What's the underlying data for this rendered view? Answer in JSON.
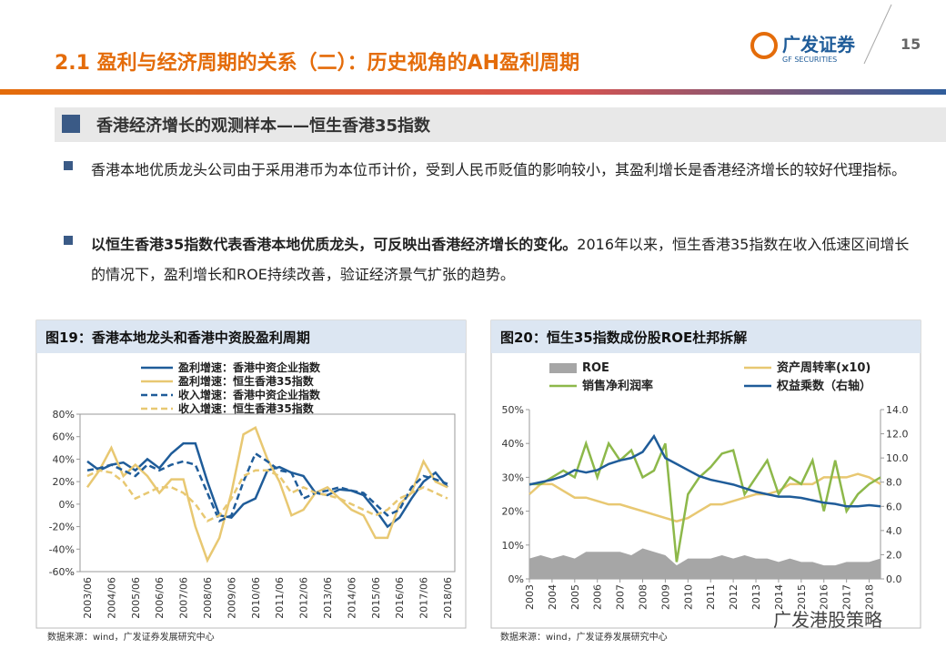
{
  "header": {
    "title": "2.1 盈利与经济周期的关系（二）：历史视角的AH盈利周期",
    "page": "15",
    "logo": "广发证券",
    "logo_sub": "GF SECURITIES"
  },
  "section": "香港经济增长的观测样本——恒生香港35指数",
  "bullets": [
    {
      "text": "香港本地优质龙头公司由于采用港币为本位币计价，受到人民币贬值的影响较小，其盈利增长是香港经济增长的较好代理指标。"
    },
    {
      "bold": "以恒生香港35指数代表香港本地优质龙头，可反映出香港经济增长的变化。",
      "text": "2016年以来，恒生香港35指数在收入低速区间增长的情况下，盈利增长和ROE持续改善，验证经济景气扩张的趋势。"
    }
  ],
  "watermark": "广发港股策略",
  "chart_data": [
    {
      "type": "line",
      "title": "图19：香港本地龙头和香港中资股盈利周期",
      "source": "数据来源：wind，广发证券发展研究中心",
      "categories": [
        "2003/06",
        null,
        "2004/06",
        null,
        "2005/06",
        null,
        "2006/06",
        null,
        "2007/06",
        null,
        "2008/06",
        null,
        "2009/06",
        null,
        "2010/06",
        null,
        "2011/06",
        null,
        "2012/06",
        null,
        "2013/06",
        null,
        "2014/06",
        null,
        "2015/06",
        null,
        "2016/06",
        null,
        "2017/06",
        null,
        "2018/06"
      ],
      "ylim": [
        -60,
        80
      ],
      "yticks": [
        {
          "value": -60,
          "label": "-60%"
        },
        {
          "value": -40,
          "label": "-40%"
        },
        {
          "value": -20,
          "label": "-20%"
        },
        {
          "value": 0,
          "label": "0%"
        },
        {
          "value": 20,
          "label": "20%"
        },
        {
          "value": 40,
          "label": "40%"
        },
        {
          "value": 60,
          "label": "60%"
        },
        {
          "value": 80,
          "label": "80%"
        }
      ],
      "series": [
        {
          "name": "盈利增速：香港中资企业指数",
          "color": "#1f5c99",
          "dash": false,
          "values": [
            38,
            30,
            35,
            37,
            30,
            40,
            32,
            45,
            54,
            54,
            20,
            -10,
            -12,
            0,
            5,
            30,
            33,
            28,
            25,
            10,
            8,
            13,
            12,
            8,
            -5,
            -20,
            -12,
            5,
            20,
            28,
            15
          ]
        },
        {
          "name": "盈利增速：恒生香港35指数",
          "color": "#e8c872",
          "dash": false,
          "values": [
            15,
            30,
            50,
            25,
            35,
            25,
            10,
            22,
            22,
            -20,
            -50,
            -30,
            10,
            62,
            68,
            40,
            20,
            -10,
            -5,
            10,
            15,
            5,
            -5,
            -10,
            -30,
            -30,
            0,
            10,
            38,
            20,
            15
          ]
        },
        {
          "name": "收入增速：香港中资企业指数",
          "color": "#1f5c99",
          "dash": true,
          "values": [
            30,
            32,
            35,
            30,
            25,
            35,
            30,
            35,
            38,
            35,
            10,
            -15,
            -10,
            20,
            45,
            38,
            30,
            28,
            5,
            10,
            12,
            15,
            12,
            10,
            0,
            -10,
            -5,
            15,
            25,
            22,
            18
          ]
        },
        {
          "name": "收入增速：恒生香港35指数",
          "color": "#e8c872",
          "dash": true,
          "values": [
            25,
            30,
            28,
            20,
            5,
            10,
            15,
            15,
            10,
            0,
            -15,
            -10,
            5,
            25,
            30,
            30,
            25,
            10,
            15,
            10,
            8,
            5,
            0,
            -5,
            -10,
            -5,
            5,
            10,
            15,
            10,
            5
          ]
        }
      ]
    },
    {
      "type": "line",
      "title": "图20：恒生35指数成份股ROE杜邦拆解",
      "source": "数据来源：wind，广发证券发展研究中心",
      "x": [
        2003,
        2003.5,
        2004,
        2004.5,
        2005,
        2005.5,
        2006,
        2006.5,
        2007,
        2007.5,
        2008,
        2008.5,
        2009,
        2009.5,
        2010,
        2010.5,
        2011,
        2011.5,
        2012,
        2012.5,
        2013,
        2013.5,
        2014,
        2014.5,
        2015,
        2015.5,
        2016,
        2016.5,
        2017,
        2017.5,
        2018,
        2018.5
      ],
      "xlim": [
        2003,
        2018.5
      ],
      "xticks": [
        2003,
        2004,
        2005,
        2006,
        2007,
        2008,
        2009,
        2010,
        2011,
        2012,
        2013,
        2014,
        2015,
        2016,
        2017,
        2018
      ],
      "ylim": [
        0,
        50
      ],
      "yticks": [
        {
          "value": 0,
          "label": "0%"
        },
        {
          "value": 10,
          "label": "10%"
        },
        {
          "value": 20,
          "label": "20%"
        },
        {
          "value": 30,
          "label": "30%"
        },
        {
          "value": 40,
          "label": "40%"
        },
        {
          "value": 50,
          "label": "50%"
        }
      ],
      "y2lim": [
        0,
        14
      ],
      "y2ticks": [
        {
          "value": 0,
          "label": "0.0"
        },
        {
          "value": 2,
          "label": "2.0"
        },
        {
          "value": 4,
          "label": "4.0"
        },
        {
          "value": 6,
          "label": "6.0"
        },
        {
          "value": 8,
          "label": "8.0"
        },
        {
          "value": 10,
          "label": "10.0"
        },
        {
          "value": 12,
          "label": "12.0"
        },
        {
          "value": 14,
          "label": "14.0"
        }
      ],
      "series": [
        {
          "name": "ROE",
          "color": "#a6a6a6",
          "style": "area",
          "values": [
            6,
            7,
            6,
            7,
            6,
            8,
            8,
            8,
            8,
            7,
            9,
            8,
            7,
            4,
            6,
            6,
            6,
            7,
            6,
            7,
            6,
            6,
            5,
            6,
            5,
            5,
            4,
            4,
            5,
            5,
            5,
            6
          ]
        },
        {
          "name": "资产周转率(x10)",
          "color": "#e8c872",
          "values": [
            25,
            28,
            28,
            26,
            24,
            24,
            23,
            22,
            22,
            21,
            20,
            19,
            18,
            17,
            18,
            20,
            22,
            22,
            23,
            24,
            25,
            25,
            26,
            28,
            28,
            28,
            30,
            30,
            30,
            31,
            30,
            28
          ]
        },
        {
          "name": "销售净利润率",
          "color": "#8db84a",
          "values": [
            28,
            28,
            30,
            32,
            30,
            40,
            30,
            40,
            35,
            38,
            30,
            32,
            40,
            5,
            25,
            30,
            33,
            37,
            38,
            25,
            30,
            35,
            25,
            30,
            28,
            35,
            20,
            35,
            20,
            25,
            28,
            30
          ]
        },
        {
          "name": "权益乘数（右轴）",
          "color": "#1f5c99",
          "axis": "y2",
          "values": [
            7.8,
            8.0,
            8.2,
            8.5,
            9.0,
            8.8,
            9.0,
            9.5,
            9.8,
            10.0,
            10.5,
            11.8,
            10.0,
            9.5,
            9.0,
            8.5,
            8.2,
            8.0,
            7.8,
            7.5,
            7.2,
            7.0,
            6.8,
            6.8,
            6.7,
            6.5,
            6.3,
            6.2,
            6.0,
            6.0,
            6.1,
            6.0
          ]
        }
      ]
    }
  ]
}
